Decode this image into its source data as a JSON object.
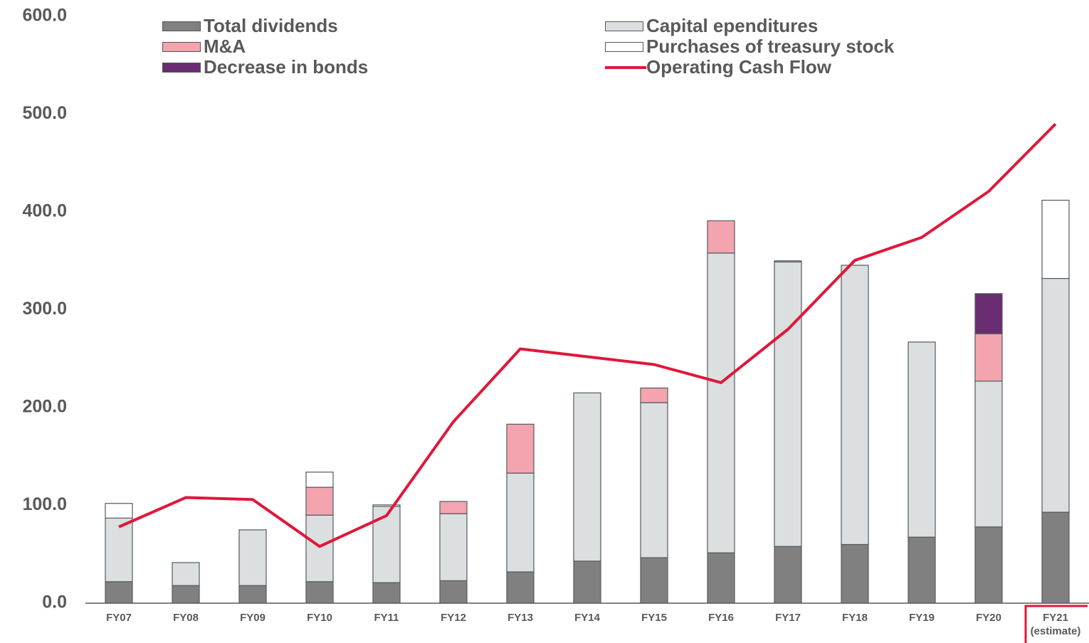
{
  "chart_data": {
    "type": "bar",
    "categories": [
      "FY07",
      "FY08",
      "FY09",
      "FY10",
      "FY11",
      "FY12",
      "FY13",
      "FY14",
      "FY15",
      "FY16",
      "FY17",
      "FY18",
      "FY19",
      "FY20",
      "FY21 (estimate)"
    ],
    "series": [
      {
        "name": "Total dividends",
        "color": "#808080",
        "type": "bar",
        "values": [
          22,
          18,
          18,
          22,
          21,
          23,
          32,
          43,
          46.5,
          51.5,
          58,
          60,
          67.5,
          78,
          93
        ]
      },
      {
        "name": "Capital ependitures",
        "color": "#dcdfe0",
        "type": "bar",
        "values": [
          65,
          23.5,
          57,
          68,
          78,
          68.5,
          101,
          172,
          158.5,
          306.5,
          291,
          285.5,
          199.5,
          149,
          239
        ]
      },
      {
        "name": "M&A",
        "color": "#f4a4ae",
        "type": "bar",
        "values": [
          null,
          null,
          null,
          28.5,
          null,
          12.5,
          50,
          null,
          15,
          33,
          null,
          null,
          null,
          48.5,
          null
        ]
      },
      {
        "name": "Purchases of treasury stock",
        "color": "#ffffff",
        "type": "bar",
        "values": [
          15,
          null,
          null,
          15.5,
          1.5,
          null,
          null,
          null,
          null,
          null,
          1,
          null,
          null,
          null,
          80
        ]
      },
      {
        "name": "Decrease in bonds",
        "color": "#6a2c70",
        "type": "bar",
        "values": [
          null,
          null,
          null,
          null,
          null,
          null,
          null,
          null,
          null,
          null,
          null,
          null,
          null,
          41,
          null
        ]
      },
      {
        "name": "Operating Cash Flow",
        "color": "#e0173a",
        "type": "line",
        "values": [
          78,
          108,
          106,
          58,
          89.5,
          185.5,
          260,
          252,
          244,
          225.5,
          280,
          350.5,
          374,
          421,
          490
        ]
      }
    ],
    "ylim": [
      0,
      600
    ],
    "yticks": [
      {
        "value": 0,
        "label": "0.0"
      },
      {
        "value": 100,
        "label": "100.0"
      },
      {
        "value": 200,
        "label": "200.0"
      },
      {
        "value": 300,
        "label": "300.0"
      },
      {
        "value": 400,
        "label": "400.0"
      },
      {
        "value": 500,
        "label": "500.0"
      },
      {
        "value": 600,
        "label": "600.0"
      }
    ],
    "grid": false
  }
}
